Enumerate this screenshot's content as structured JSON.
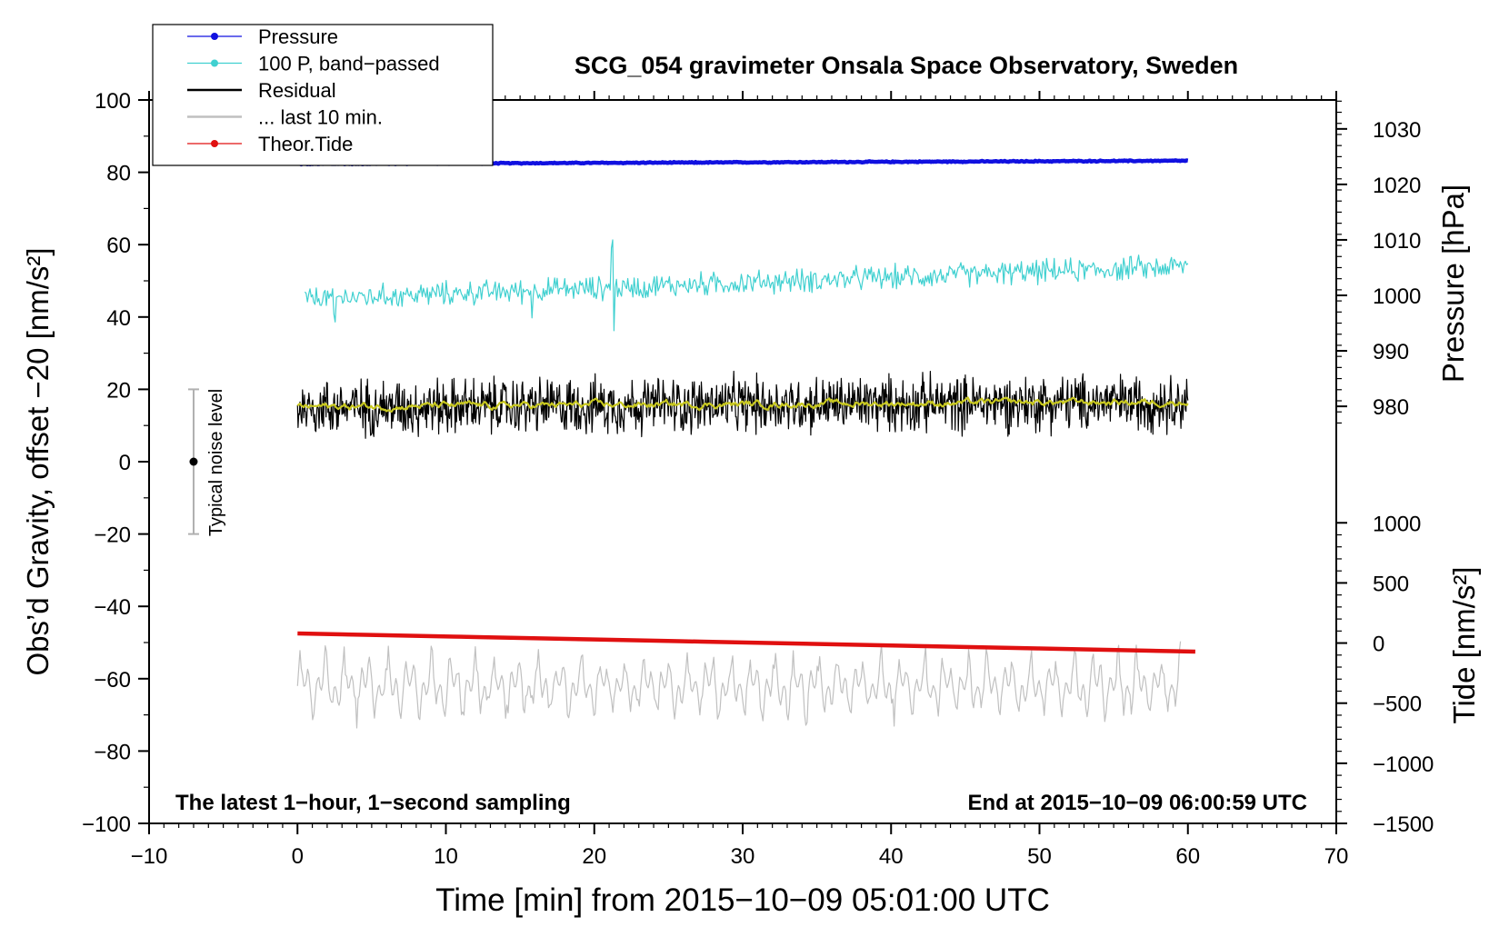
{
  "chart_data": {
    "type": "line",
    "title": "SCG_054 gravimeter Onsala Space Observatory, Sweden",
    "xlabel": "Time [min] from 2015−10−09 05:01:00 UTC",
    "ylabel_left": "Obs’d Gravity, offset −20 [nm/s²]",
    "ylabel_right_pressure": "Pressure [hPa]",
    "ylabel_right_tide": "Tide [nm/s²]",
    "xlim": [
      -10,
      70
    ],
    "ylim_left": [
      -100,
      100
    ],
    "x_ticks": [
      -10,
      0,
      10,
      20,
      30,
      40,
      50,
      60,
      70
    ],
    "x_tick_labels": [
      "−10",
      "0",
      "10",
      "20",
      "30",
      "40",
      "50",
      "60",
      "70"
    ],
    "y_ticks_left": [
      100,
      80,
      60,
      40,
      20,
      0,
      -20,
      -40,
      -60,
      -80,
      -100
    ],
    "y_tick_labels_left": [
      "100",
      "80",
      "60",
      "40",
      "20",
      "0",
      "−20",
      "−40",
      "−60",
      "−80",
      "−100"
    ],
    "pressure_ticks": [
      1030,
      1020,
      1010,
      1000,
      990,
      980
    ],
    "pressure_tick_labels": [
      "1030",
      "1020",
      "1010",
      "1000",
      "990",
      "980"
    ],
    "pressure_axis_map": {
      "value_a": 1030,
      "left_a": 92,
      "value_b": 980,
      "left_b": 15.3
    },
    "tide_ticks": [
      1000,
      500,
      0,
      -500,
      -1000,
      -1500
    ],
    "tide_tick_labels": [
      "1000",
      "500",
      "0",
      "−500",
      "−1000",
      "−1500"
    ],
    "tide_axis_map": {
      "value_a": 1000,
      "left_a": -16.9,
      "value_b": -1500,
      "left_b": -100
    },
    "legend": {
      "position": "top-left",
      "entries": [
        {
          "label": "Pressure",
          "color": "#1010e0",
          "marker": true
        },
        {
          "label": "100 P, band−passed",
          "color": "#40d0d0",
          "marker": true
        },
        {
          "label": "Residual",
          "color": "#000000",
          "marker": false
        },
        {
          "label": "... last 10 min.",
          "color": "#c0c0c0",
          "marker": false
        },
        {
          "label": "Theor.Tide",
          "color": "#e01010",
          "marker": true
        }
      ]
    },
    "annotations": {
      "bottom_left": "The latest 1−hour, 1−second sampling",
      "bottom_right": "End at 2015−10−09 06:00:59 UTC",
      "noise_label": "Typical noise level"
    },
    "noise_bar": {
      "x": -7,
      "center": 0,
      "low": -20,
      "high": 20
    },
    "series": [
      {
        "name": "Pressure",
        "color": "#1010e0",
        "x_range": [
          0,
          60
        ],
        "y_left_start": 82.3,
        "y_left_end": 83.2,
        "pressure_hPa_start": 1023.2,
        "pressure_hPa_end": 1023.6,
        "noise": 0.15,
        "style": "thick"
      },
      {
        "name": "100 P, band−passed",
        "color": "#40d0d0",
        "x_range": [
          0.5,
          60
        ],
        "y_left_start": 45,
        "y_left_end": 54,
        "noise": 3.2,
        "spikes": [
          [
            21.2,
            12
          ],
          [
            21.3,
            -12
          ],
          [
            2.5,
            -8
          ],
          [
            15.8,
            -6
          ]
        ],
        "style": "thin"
      },
      {
        "name": "Residual",
        "color": "#000000",
        "x_range": [
          0,
          60
        ],
        "y_left_start": 15,
        "y_left_end": 16.5,
        "noise": 7.5,
        "style": "thin"
      },
      {
        "name": "Residual smoothed",
        "color": "#c8c820",
        "x_range": [
          0,
          60
        ],
        "y_left_start": 15.2,
        "y_left_end": 16.6,
        "noise": 0.6,
        "style": "medium"
      },
      {
        "name": "... last 10 min.",
        "color": "#c0c0c0",
        "x_range": [
          0,
          59.5
        ],
        "y_left_start": -62,
        "y_left_end": -62,
        "noise": 5,
        "style": "thin"
      },
      {
        "name": "Theor.Tide",
        "color": "#e01010",
        "x_range": [
          0,
          60.5
        ],
        "y_left_start": -47.5,
        "y_left_end": -52.5,
        "tide_nm_s2_start": 95,
        "tide_nm_s2_end": -85,
        "noise": 0,
        "style": "thick"
      }
    ]
  }
}
